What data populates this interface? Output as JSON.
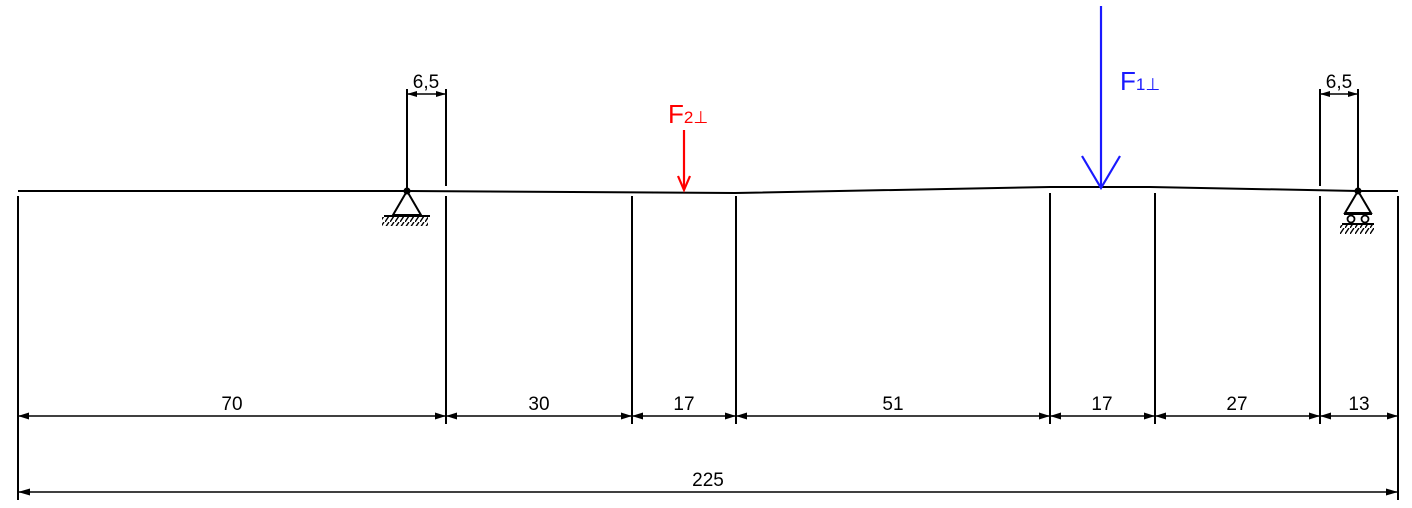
{
  "diagram": {
    "colors": {
      "line": "#000000",
      "force_1": "#1a1aff",
      "force_2": "#ff0000"
    },
    "forces": {
      "f1": {
        "letter": "F",
        "subscript": "1⊥"
      },
      "f2": {
        "letter": "F",
        "subscript": "2⊥"
      }
    },
    "segment_dimensions": [
      "70",
      "30",
      "17",
      "51",
      "17",
      "27",
      "13"
    ],
    "total_dimension": "225",
    "support_offset_left": "6,5",
    "support_offset_right": "6,5"
  }
}
